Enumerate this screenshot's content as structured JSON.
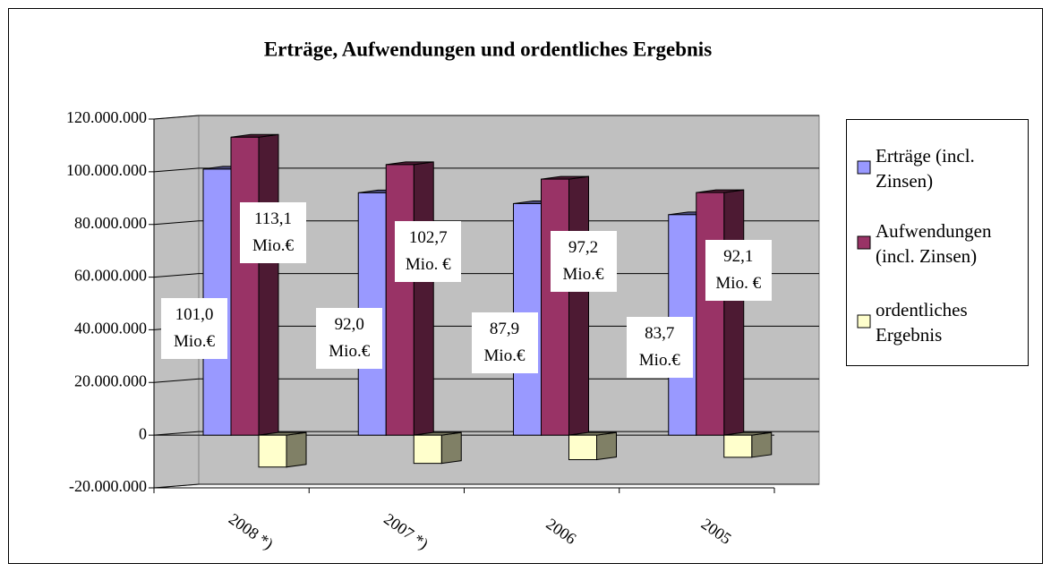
{
  "chart_data": {
    "type": "bar3d",
    "title": "Erträge, Aufwendungen und ordentliches Ergebnis",
    "categories": [
      "2008 *)",
      "2007 *)",
      "2006",
      "2005"
    ],
    "series": [
      {
        "name": "Erträge (incl. Zinsen)",
        "color": "#9999ff",
        "side_color": "#4d4d80",
        "values": [
          101000000,
          92000000,
          87900000,
          83700000
        ],
        "value_labels": [
          "101,0 Mio.€",
          "92,0 Mio.€",
          "87,9 Mio.€",
          "83,7 Mio.€"
        ]
      },
      {
        "name": "Aufwendungen (incl. Zinsen)",
        "color": "#993366",
        "side_color": "#4d1a33",
        "values": [
          113100000,
          102700000,
          97200000,
          92100000
        ],
        "value_labels": [
          "113,1 Mio.€",
          "102,7 Mio. €",
          "97,2 Mio.€",
          "92,1 Mio. €"
        ]
      },
      {
        "name": "ordentliches Ergebnis",
        "color": "#ffffcc",
        "side_color": "#808066",
        "values": [
          -12100000,
          -10700000,
          -9300000,
          -8400000
        ]
      }
    ],
    "ylim": [
      -20000000,
      120000000
    ],
    "yticks": [
      {
        "value": -20000000,
        "label": "-20.000.000"
      },
      0,
      {
        "value": 20000000,
        "label": "20.000.000"
      },
      {
        "value": 40000000,
        "label": "40.000.000"
      },
      {
        "value": 60000000,
        "label": "60.000.000"
      },
      {
        "value": 80000000,
        "label": "80.000.000"
      },
      {
        "value": 100000000,
        "label": "100.000.000"
      },
      {
        "value": 120000000,
        "label": "120.000.000"
      }
    ],
    "grid": true,
    "legend": "right"
  }
}
